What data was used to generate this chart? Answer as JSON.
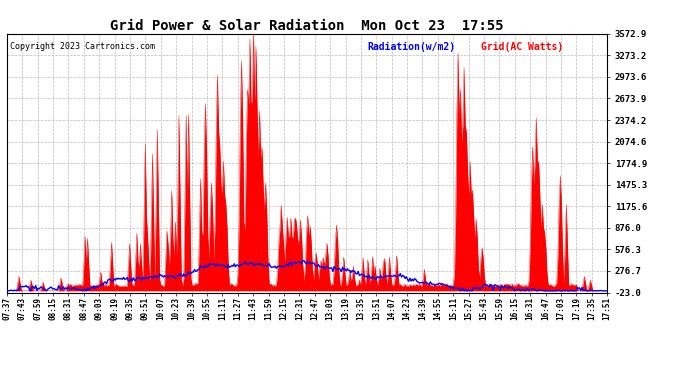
{
  "title": "Grid Power & Solar Radiation  Mon Oct 23  17:55",
  "copyright": "Copyright 2023 Cartronics.com",
  "legend_radiation": "Radiation(w/m2)",
  "legend_grid": "Grid(AC Watts)",
  "ylabel_right_ticks": [
    3572.9,
    3273.2,
    2973.6,
    2673.9,
    2374.2,
    2074.6,
    1774.9,
    1475.3,
    1175.6,
    876.0,
    576.3,
    276.7,
    -23.0
  ],
  "ymin": -23.0,
  "ymax": 3572.9,
  "radiation_color": "#0000ff",
  "grid_color": "#ff0000",
  "background_color": "#ffffff",
  "x_tick_labels": [
    "07:37",
    "07:43",
    "07:59",
    "08:15",
    "08:31",
    "08:47",
    "09:03",
    "09:19",
    "09:35",
    "09:51",
    "10:07",
    "10:23",
    "10:39",
    "10:55",
    "11:11",
    "11:27",
    "11:43",
    "11:59",
    "12:15",
    "12:31",
    "12:47",
    "13:03",
    "13:19",
    "13:35",
    "13:51",
    "14:07",
    "14:23",
    "14:39",
    "14:55",
    "15:11",
    "15:27",
    "15:43",
    "15:59",
    "16:15",
    "16:31",
    "16:47",
    "17:03",
    "17:19",
    "17:35",
    "17:51"
  ],
  "title_fontsize": 10,
  "copyright_fontsize": 6,
  "legend_fontsize": 7,
  "tick_fontsize": 5.5
}
